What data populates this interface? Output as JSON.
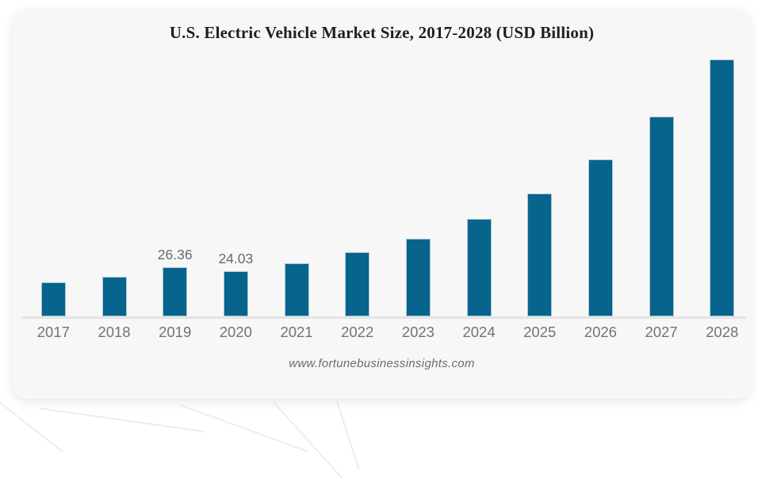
{
  "header": {
    "title": "U.S. Electric Vehicle Market Size, 2017-2028 (USD Billion)"
  },
  "footer": {
    "source": "www.fortunebusinessinsights.com"
  },
  "colors": {
    "bar_fill": "#07648C",
    "bar_stroke": "#aac8d7",
    "card_background": "#f7f7f7",
    "page_background": "#ffffff",
    "axis_line": "#e4e4e6",
    "title_text": "#1f1f1f",
    "value_label_text": "#6a6a6a",
    "year_label_text": "#737373",
    "source_text": "#6b6b6b"
  },
  "chart_data": {
    "type": "bar",
    "title": "U.S. Electric Vehicle Market Size, 2017-2028 (USD Billion)",
    "categories": [
      "2017",
      "2018",
      "2019",
      "2020",
      "2021",
      "2022",
      "2023",
      "2024",
      "2025",
      "2026",
      "2027",
      "2028"
    ],
    "values": [
      18.4,
      21.4,
      26.36,
      24.03,
      28.3,
      34.4,
      41.7,
      52.3,
      65.9,
      83.8,
      106.7,
      137.4
    ],
    "data_labels": [
      "",
      "",
      "26.36",
      "24.03",
      "",
      "",
      "",
      "",
      "",
      "",
      "",
      ""
    ],
    "xlabel": "",
    "ylabel": "",
    "ylim": [
      0,
      140
    ],
    "grid": false,
    "legend": false,
    "y_axis_shown": false,
    "source": "www.fortunebusinessinsights.com"
  }
}
